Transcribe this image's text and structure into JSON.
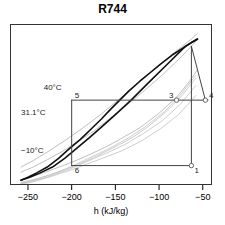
{
  "chart_data": {
    "type": "line",
    "title": "R744",
    "xlabel": "h (kJ/kg)",
    "xlim": [
      -270,
      -40
    ],
    "ylim": [
      0,
      11
    ],
    "xticks": [
      -250,
      -200,
      -150,
      -100,
      -50
    ],
    "tick_labels": "x",
    "series": [
      {
        "color": "#c0c0c0",
        "x": [
          -258,
          -248,
          -235,
          -220,
          -205,
          -190,
          -175,
          -160,
          -145,
          -130,
          -112,
          -92,
          -74,
          -58
        ],
        "values": [
          0.15,
          0.28,
          0.48,
          0.75,
          1.08,
          1.45,
          1.85,
          2.3,
          2.75,
          3.25,
          4.0,
          5.0,
          6.1,
          7.3
        ]
      },
      {
        "color": "#c0c0c0",
        "x": [
          -258,
          -250,
          -240,
          -228,
          -214,
          -200,
          -186,
          -170,
          -153,
          -135,
          -115,
          -94,
          -75,
          -58
        ],
        "values": [
          0.1,
          0.2,
          0.36,
          0.6,
          0.9,
          1.25,
          1.65,
          2.1,
          2.6,
          3.2,
          4.0,
          5.0,
          6.2,
          7.5
        ]
      },
      {
        "color": "#c0c0c0",
        "x": [
          -258,
          -252,
          -244,
          -233,
          -220,
          -206,
          -192,
          -176,
          -158,
          -139,
          -118,
          -96,
          -76,
          -58
        ],
        "values": [
          0.05,
          0.12,
          0.24,
          0.42,
          0.68,
          0.98,
          1.33,
          1.75,
          2.22,
          2.75,
          3.5,
          4.4,
          5.5,
          6.8
        ]
      },
      {
        "color": "#c0c0c0",
        "x": [
          -258,
          -253,
          -246,
          -237,
          -226,
          -213,
          -198,
          -182,
          -163,
          -142,
          -120,
          -98,
          -77,
          -58
        ],
        "values": [
          0.02,
          0.07,
          0.16,
          0.3,
          0.5,
          0.76,
          1.06,
          1.42,
          1.84,
          2.33,
          3.0,
          3.85,
          4.85,
          6.1
        ]
      },
      {
        "color": "#b0b0b0",
        "x": [
          -258,
          -245,
          -230,
          -212,
          -195,
          -178,
          -162,
          -148,
          -135,
          -122,
          -100,
          -80,
          -65,
          -56
        ],
        "values": [
          0.3,
          0.55,
          0.85,
          1.25,
          1.65,
          2.1,
          2.55,
          3.0,
          3.45,
          3.9,
          4.9,
          6.0,
          7.1,
          7.9
        ]
      },
      {
        "color": "#b0b0b0",
        "x": [
          -258,
          -244,
          -228,
          -210,
          -192,
          -174,
          -155,
          -136,
          -116,
          -95,
          -76,
          -60,
          -56
        ],
        "values": [
          0.85,
          1.2,
          1.7,
          2.3,
          3.0,
          3.7,
          4.6,
          5.5,
          6.5,
          7.6,
          8.7,
          9.7,
          10.0
        ]
      },
      {
        "color": "#b0b0b0",
        "x": [
          -258,
          -244,
          -226,
          -207,
          -187,
          -167,
          -147,
          -125,
          -103,
          -82,
          -63,
          -56
        ],
        "values": [
          1.2,
          1.65,
          2.3,
          3.05,
          3.9,
          4.8,
          5.8,
          6.9,
          8.0,
          9.1,
          10.0,
          10.4
        ]
      },
      {
        "color": "#111111",
        "x": [
          -258,
          -250,
          -240,
          -228,
          -215,
          -202,
          -190,
          -178,
          -166,
          -155,
          -145,
          -135,
          -122,
          -110,
          -98,
          -85,
          -72,
          -62,
          -56
        ],
        "values": [
          0.3,
          0.5,
          0.8,
          1.2,
          1.8,
          2.5,
          3.1,
          3.8,
          4.5,
          5.2,
          5.8,
          6.4,
          7.1,
          7.7,
          8.3,
          8.9,
          9.4,
          9.8,
          10.0
        ]
      },
      {
        "color": "#111111",
        "x": [
          -258,
          -248,
          -236,
          -222,
          -208,
          -194,
          -180,
          -165,
          -150,
          -132,
          -112,
          -90,
          -70,
          -56
        ],
        "values": [
          0.3,
          0.5,
          0.8,
          1.2,
          1.8,
          2.5,
          3.2,
          4.0,
          4.8,
          5.8,
          7.0,
          8.3,
          9.5,
          10.0
        ]
      },
      {
        "color": "#444444",
        "x": [
          -200,
          -63
        ],
        "values": [
          1.3,
          1.3
        ]
      },
      {
        "color": "#444444",
        "x": [
          -63,
          -63
        ],
        "values": [
          1.3,
          9.5
        ]
      },
      {
        "color": "#444444",
        "x": [
          -63,
          -47
        ],
        "values": [
          9.5,
          5.8
        ]
      },
      {
        "color": "#444444",
        "x": [
          -200,
          -47
        ],
        "values": [
          5.8,
          5.8
        ]
      },
      {
        "color": "#444444",
        "x": [
          -200,
          -200
        ],
        "values": [
          5.8,
          1.3
        ]
      },
      {
        "color": "#444444",
        "x": [
          -47,
          -44
        ],
        "values": [
          5.8,
          5.8
        ]
      },
      {
        "type": "scatter",
        "marker": "circle",
        "color": "#555555",
        "x": [
          -63,
          -80,
          -47
        ],
        "values": [
          1.3,
          5.8,
          5.8
        ]
      }
    ],
    "annotations": [
      {
        "text": "1",
        "x": -63,
        "y": 1.3
      },
      {
        "text": "3",
        "x": -80,
        "y": 5.8
      },
      {
        "text": "4",
        "x": -43,
        "y": 5.8
      },
      {
        "text": "5",
        "x": -200,
        "y": 5.8
      },
      {
        "text": "6",
        "x": -200,
        "y": 1.3
      },
      {
        "text": "40°C",
        "x": -232,
        "y": 6.5
      },
      {
        "text": "31.1°C",
        "x": -258,
        "y": 4.8
      },
      {
        "text": "−10°C",
        "x": -258,
        "y": 2.2
      }
    ]
  }
}
